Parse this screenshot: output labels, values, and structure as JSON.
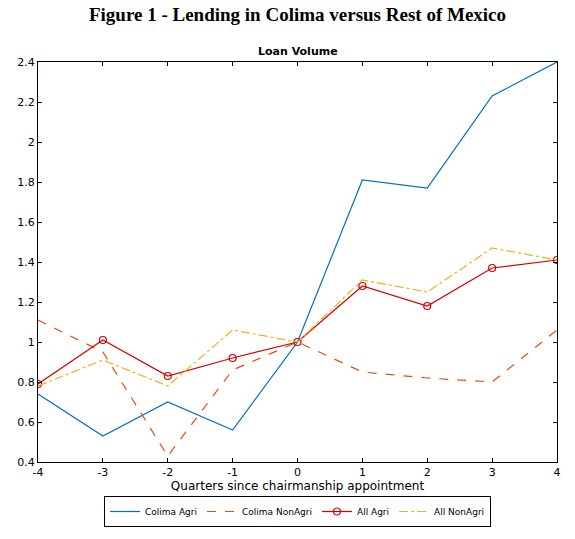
{
  "chart_data": {
    "type": "line",
    "title": "Figure 1 - Lending in Colima versus Rest of Mexico",
    "subtitle": "Loan Volume",
    "x_label": "Quarters since chairmanship appointment",
    "x": [
      -4,
      -3,
      -2,
      -1,
      0,
      1,
      2,
      3,
      4
    ],
    "series": [
      {
        "name": "Colima Agri",
        "color": "#0072bd",
        "line_style": "solid",
        "values": [
          0.74,
          0.53,
          0.7,
          0.56,
          1.0,
          1.81,
          1.77,
          2.23,
          2.4
        ]
      },
      {
        "name": "Colima NonAgri",
        "color": "#d95319",
        "line_style": "dashed",
        "values": [
          1.11,
          0.95,
          0.43,
          0.86,
          1.0,
          0.85,
          0.82,
          0.8,
          1.06
        ]
      },
      {
        "name": "All Agri",
        "color": "#d40000",
        "line_style": "solid",
        "marker": "circle",
        "values": [
          0.79,
          1.01,
          0.83,
          0.92,
          1.0,
          1.28,
          1.18,
          1.37,
          1.41
        ]
      },
      {
        "name": "All NonAgri",
        "color": "#edb120",
        "line_style": "dashdot",
        "values": [
          0.78,
          0.91,
          0.78,
          1.06,
          1.0,
          1.31,
          1.25,
          1.47,
          1.41
        ]
      }
    ],
    "xlim": [
      -4,
      4
    ],
    "xticks": [
      -4,
      -3,
      -2,
      -1,
      0,
      1,
      2,
      3,
      4
    ],
    "ylim": [
      0.4,
      2.4
    ],
    "yticks": [
      0.4,
      0.6,
      0.8,
      1,
      1.2,
      1.4,
      1.6,
      1.8,
      2,
      2.2,
      2.4
    ],
    "grid": false,
    "legend": "bottom"
  }
}
